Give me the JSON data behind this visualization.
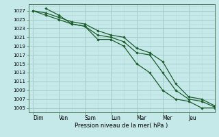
{
  "background_color": "#c5e8e8",
  "grid_major_color": "#a0c8c8",
  "grid_minor_color": "#b8d8d8",
  "line_color": "#1a5c2a",
  "xlabel": "Pression niveau de la mer( hPa )",
  "ylim": [
    1004,
    1028.5
  ],
  "ytick_values": [
    1005,
    1007,
    1009,
    1011,
    1013,
    1015,
    1017,
    1019,
    1021,
    1023,
    1025,
    1027
  ],
  "day_labels": [
    "Dim",
    "Ven",
    "Sam",
    "Lun",
    "Mar",
    "Mer",
    "Jeu"
  ],
  "day_x": [
    0,
    24,
    48,
    72,
    96,
    120,
    144
  ],
  "xlim": [
    -4,
    168
  ],
  "series": [
    {
      "x": [
        0,
        12,
        24,
        36,
        48,
        60,
        72,
        84,
        96,
        108,
        120,
        132,
        144,
        156,
        168
      ],
      "y": [
        1027,
        1026.5,
        1025.5,
        1024.5,
        1024.0,
        1022.5,
        1021.5,
        1021.0,
        1018.5,
        1017.5,
        1015.5,
        1010.5,
        1007.5,
        1007.0,
        1005.5
      ]
    },
    {
      "x": [
        0,
        12,
        24,
        36,
        48,
        60,
        72,
        84,
        96,
        108,
        120,
        132,
        144,
        156,
        168
      ],
      "y": [
        1027,
        1026.0,
        1025.0,
        1024.0,
        1023.5,
        1021.5,
        1021.0,
        1020.0,
        1017.5,
        1017.0,
        1013.0,
        1009.0,
        1007.0,
        1006.5,
        1005.2
      ]
    },
    {
      "x": [
        12,
        24,
        36,
        48,
        60,
        72,
        84,
        96,
        108,
        120,
        132,
        144,
        156,
        168
      ],
      "y": [
        1027.5,
        1026.0,
        1024.0,
        1023.5,
        1020.5,
        1020.5,
        1019.0,
        1015.0,
        1013.0,
        1009.0,
        1007.0,
        1006.5,
        1005.0,
        1005.0
      ]
    }
  ]
}
